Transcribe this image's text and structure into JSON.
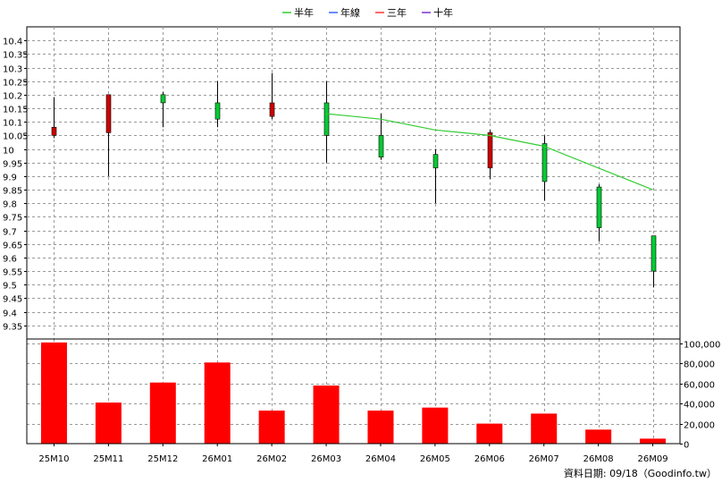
{
  "legend": [
    {
      "label": "半年",
      "color": "#33cc33"
    },
    {
      "label": "年線",
      "color": "#3366ff"
    },
    {
      "label": "三年",
      "color": "#ff3333"
    },
    {
      "label": "十年",
      "color": "#7733cc"
    }
  ],
  "footer": "資料日期: 09/18（Goodinfo.tw）",
  "chart_data": {
    "type": "candlestick",
    "categories": [
      "25M10",
      "25M11",
      "25M12",
      "26M01",
      "26M02",
      "26M03",
      "26M04",
      "26M05",
      "26M06",
      "26M07",
      "26M08",
      "26M09"
    ],
    "price_axis": {
      "min": 9.3,
      "max": 10.45,
      "ticks": [
        9.35,
        9.4,
        9.45,
        9.5,
        9.55,
        9.6,
        9.65,
        9.7,
        9.75,
        9.8,
        9.85,
        9.9,
        9.95,
        10,
        10.05,
        10.1,
        10.15,
        10.2,
        10.25,
        10.3,
        10.35,
        10.4
      ]
    },
    "candles": [
      {
        "open": 10.05,
        "close": 10.08,
        "high": 10.19,
        "low": 10.04
      },
      {
        "open": 10.06,
        "close": 10.2,
        "high": 10.2,
        "low": 9.9
      },
      {
        "open": 10.2,
        "close": 10.17,
        "high": 10.21,
        "low": 10.08
      },
      {
        "open": 10.17,
        "close": 10.11,
        "high": 10.25,
        "low": 10.08
      },
      {
        "open": 10.12,
        "close": 10.17,
        "high": 10.28,
        "low": 10.11
      },
      {
        "open": 10.17,
        "close": 10.05,
        "high": 10.25,
        "low": 9.95
      },
      {
        "open": 10.05,
        "close": 9.97,
        "high": 10.13,
        "low": 9.96
      },
      {
        "open": 9.98,
        "close": 9.93,
        "high": 10.0,
        "low": 9.8
      },
      {
        "open": 9.93,
        "close": 10.06,
        "high": 10.07,
        "low": 9.89
      },
      {
        "open": 10.02,
        "close": 9.88,
        "high": 10.05,
        "low": 9.81
      },
      {
        "open": 9.86,
        "close": 9.71,
        "high": 9.87,
        "low": 9.66
      },
      {
        "open": 9.68,
        "close": 9.55,
        "high": 9.68,
        "low": 9.49
      }
    ],
    "up_color": "#cc0000",
    "down_color": "#00cc33",
    "ma_halfyear": {
      "start_index": 5,
      "values": [
        10.13,
        10.11,
        10.07,
        10.05,
        10.01,
        9.93,
        9.85
      ]
    },
    "volume_axis": {
      "min": 0,
      "max": 100000,
      "ticks": [
        0,
        20000,
        40000,
        60000,
        80000,
        100000
      ],
      "tick_labels": [
        "0",
        "20,000",
        "40,000",
        "60,000",
        "80,000",
        "100,000"
      ]
    },
    "volumes": [
      101000,
      41000,
      61000,
      81000,
      33000,
      58000,
      33000,
      36000,
      20000,
      30000,
      14000,
      5000
    ],
    "volume_color": "#ff0000",
    "grid": true
  }
}
